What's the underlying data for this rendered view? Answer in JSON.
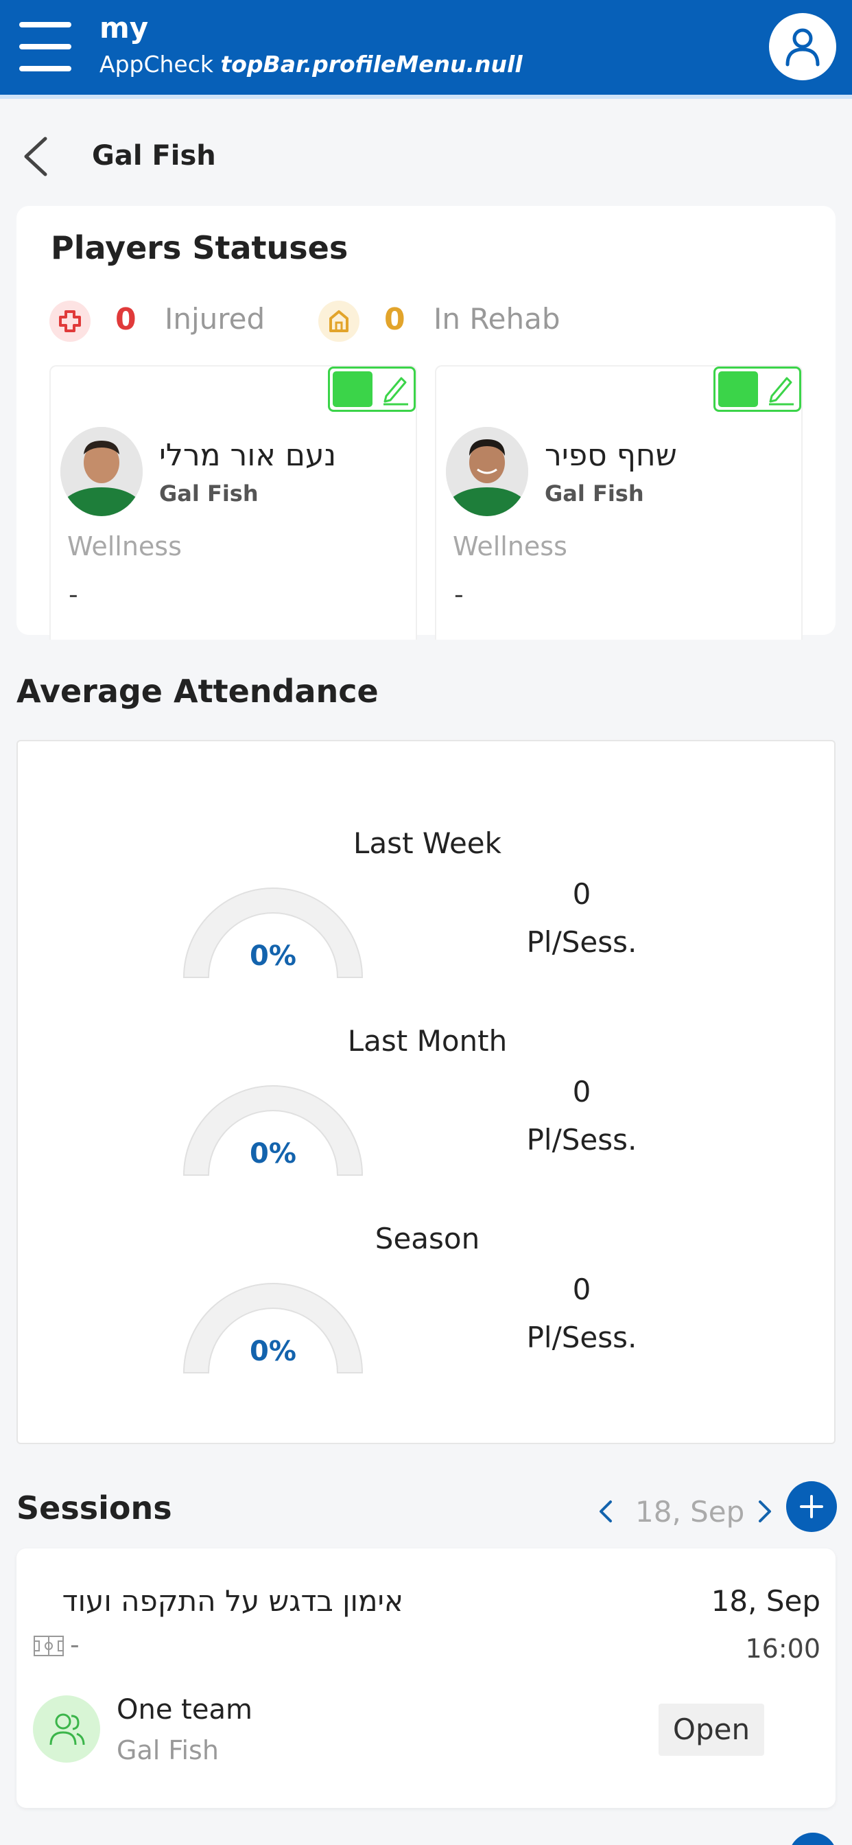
{
  "topbar": {
    "title": "my",
    "subtitle_prefix": "AppCheck",
    "subtitle_key": "topBar.profileMenu.null",
    "accent_color": "#0760b8"
  },
  "header": {
    "page_title": "Gal Fish"
  },
  "players_statuses": {
    "title": "Players Statuses",
    "injured": {
      "count": "0",
      "label": "Injured",
      "color": "#e03a3a"
    },
    "rehab": {
      "count": "0",
      "label": "In Rehab",
      "color": "#e2a42b"
    },
    "players": [
      {
        "name": "נעם אור מרלי",
        "team": "Gal Fish",
        "wellness_label": "Wellness",
        "wellness_value": "-"
      },
      {
        "name": "שחף ספיר",
        "team": "Gal Fish",
        "wellness_label": "Wellness",
        "wellness_value": "-"
      }
    ]
  },
  "attendance": {
    "title": "Average Attendance",
    "periods": [
      {
        "label": "Last Week",
        "percent": "0%",
        "count": "0",
        "unit": "Pl/Sess."
      },
      {
        "label": "Last Month",
        "percent": "0%",
        "count": "0",
        "unit": "Pl/Sess."
      },
      {
        "label": "Season",
        "percent": "0%",
        "count": "0",
        "unit": "Pl/Sess."
      }
    ]
  },
  "sessions": {
    "title": "Sessions",
    "current_date": "18, Sep",
    "items": [
      {
        "name": "אימון בדגש על התקפה ועוד",
        "date": "18, Sep",
        "time": "16:00",
        "field": "-",
        "team": "One team",
        "team_sub": "Gal Fish",
        "status": "Open"
      }
    ]
  }
}
